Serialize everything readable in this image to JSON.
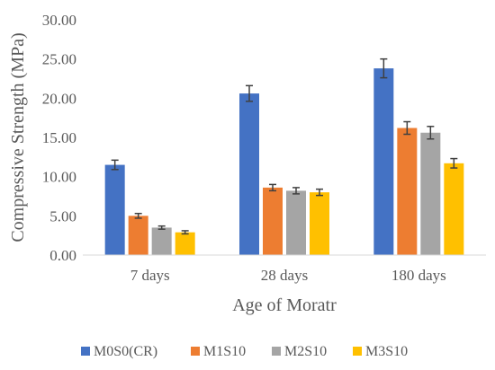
{
  "chart_data": {
    "type": "bar",
    "categories": [
      "7 days",
      "28 days",
      "180 days"
    ],
    "series": [
      {
        "name": "M0S0(CR)",
        "color": "#4472C4",
        "values": [
          11.5,
          20.6,
          23.8
        ],
        "errors": [
          0.6,
          1.0,
          1.2
        ]
      },
      {
        "name": "M1S10",
        "color": "#ED7D31",
        "values": [
          5.0,
          8.6,
          16.2
        ],
        "errors": [
          0.3,
          0.4,
          0.8
        ]
      },
      {
        "name": "M2S10",
        "color": "#A5A5A5",
        "values": [
          3.5,
          8.2,
          15.6
        ],
        "errors": [
          0.2,
          0.4,
          0.8
        ]
      },
      {
        "name": "M3S10",
        "color": "#FFC000",
        "values": [
          2.9,
          8.0,
          11.7
        ],
        "errors": [
          0.2,
          0.4,
          0.6
        ]
      }
    ],
    "xlabel": "Age of Moratr",
    "ylabel": "Compressive Strength (MPa)",
    "ylim": [
      0,
      30
    ],
    "yticks": [
      "0.00",
      "5.00",
      "10.00",
      "15.00",
      "20.00",
      "25.00",
      "30.00"
    ],
    "grid": false,
    "error_bars": true,
    "legend": "bottom"
  }
}
